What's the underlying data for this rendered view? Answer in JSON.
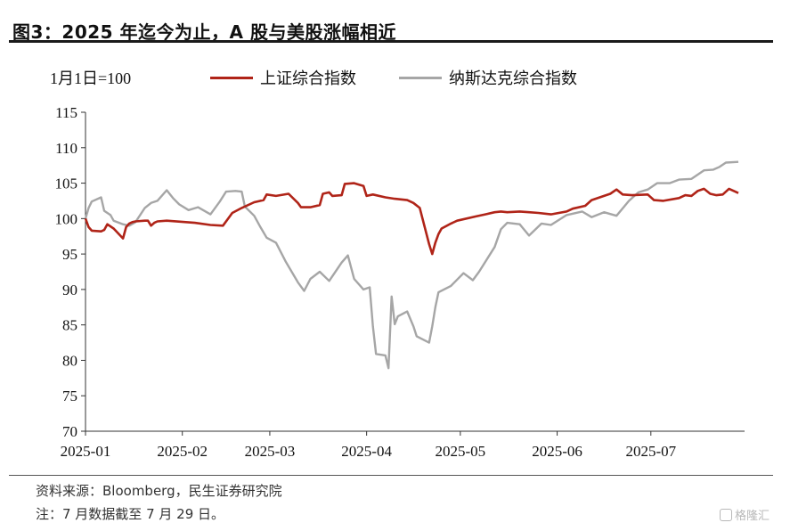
{
  "figure": {
    "title": "图3：2025 年迄今为止，A 股与美股涨幅相近",
    "index_note": "1月1日=100",
    "source": "资料来源：Bloomberg，民生证券研究院",
    "note": "注：7 月数据截至 7 月 29 日。",
    "watermark": "格隆汇"
  },
  "chart_data": {
    "type": "line",
    "title": "图3：2025 年迄今为止，A 股与美股涨幅相近",
    "xlabel": "",
    "ylabel": "",
    "x_tick_labels": [
      "2025-01",
      "2025-02",
      "2025-03",
      "2025-04",
      "2025-05",
      "2025-06",
      "2025-07"
    ],
    "x_tick_dates": [
      "2025-01-01",
      "2025-02-01",
      "2025-03-01",
      "2025-04-01",
      "2025-05-01",
      "2025-06-01",
      "2025-07-01"
    ],
    "xlim": [
      "2025-01-01",
      "2025-07-31"
    ],
    "ylim": [
      70,
      115
    ],
    "yticks": [
      70,
      75,
      80,
      85,
      90,
      95,
      100,
      105,
      110,
      115
    ],
    "grid": false,
    "legend_position": "top",
    "series": [
      {
        "name": "上证综合指数",
        "color": "#b02418",
        "points": [
          [
            "2025-01-01",
            100.0
          ],
          [
            "2025-01-02",
            98.8
          ],
          [
            "2025-01-03",
            98.3
          ],
          [
            "2025-01-06",
            98.2
          ],
          [
            "2025-01-07",
            98.4
          ],
          [
            "2025-01-08",
            99.2
          ],
          [
            "2025-01-10",
            98.6
          ],
          [
            "2025-01-13",
            97.2
          ],
          [
            "2025-01-14",
            98.8
          ],
          [
            "2025-01-15",
            99.3
          ],
          [
            "2025-01-16",
            99.5
          ],
          [
            "2025-01-17",
            99.6
          ],
          [
            "2025-01-20",
            99.7
          ],
          [
            "2025-01-21",
            99.7
          ],
          [
            "2025-01-22",
            99.0
          ],
          [
            "2025-01-23",
            99.4
          ],
          [
            "2025-01-24",
            99.6
          ],
          [
            "2025-01-27",
            99.7
          ],
          [
            "2025-02-05",
            99.4
          ],
          [
            "2025-02-10",
            99.1
          ],
          [
            "2025-02-14",
            99.0
          ],
          [
            "2025-02-17",
            100.8
          ],
          [
            "2025-02-20",
            101.5
          ],
          [
            "2025-02-24",
            102.3
          ],
          [
            "2025-02-27",
            102.6
          ],
          [
            "2025-02-28",
            103.4
          ],
          [
            "2025-03-03",
            103.2
          ],
          [
            "2025-03-07",
            103.5
          ],
          [
            "2025-03-10",
            102.2
          ],
          [
            "2025-03-11",
            101.6
          ],
          [
            "2025-03-14",
            101.6
          ],
          [
            "2025-03-17",
            101.9
          ],
          [
            "2025-03-18",
            103.5
          ],
          [
            "2025-03-20",
            103.7
          ],
          [
            "2025-03-21",
            103.2
          ],
          [
            "2025-03-24",
            103.3
          ],
          [
            "2025-03-25",
            104.9
          ],
          [
            "2025-03-28",
            105.0
          ],
          [
            "2025-03-31",
            104.6
          ],
          [
            "2025-04-01",
            103.2
          ],
          [
            "2025-04-03",
            103.4
          ],
          [
            "2025-04-07",
            103.0
          ],
          [
            "2025-04-10",
            102.8
          ],
          [
            "2025-04-14",
            102.6
          ],
          [
            "2025-04-16",
            102.2
          ],
          [
            "2025-04-18",
            101.5
          ],
          [
            "2025-04-21",
            96.4
          ],
          [
            "2025-04-22",
            95.0
          ],
          [
            "2025-04-23",
            96.6
          ],
          [
            "2025-04-24",
            97.8
          ],
          [
            "2025-04-25",
            98.6
          ],
          [
            "2025-04-28",
            99.3
          ],
          [
            "2025-04-30",
            99.7
          ],
          [
            "2025-05-06",
            100.3
          ],
          [
            "2025-05-09",
            100.6
          ],
          [
            "2025-05-12",
            100.9
          ],
          [
            "2025-05-14",
            101.0
          ],
          [
            "2025-05-16",
            100.9
          ],
          [
            "2025-05-20",
            101.0
          ],
          [
            "2025-05-23",
            100.9
          ],
          [
            "2025-05-26",
            100.8
          ],
          [
            "2025-05-30",
            100.6
          ],
          [
            "2025-06-04",
            101.0
          ],
          [
            "2025-06-06",
            101.4
          ],
          [
            "2025-06-10",
            101.8
          ],
          [
            "2025-06-12",
            102.6
          ],
          [
            "2025-06-16",
            103.2
          ],
          [
            "2025-06-18",
            103.5
          ],
          [
            "2025-06-20",
            104.1
          ],
          [
            "2025-06-22",
            103.4
          ],
          [
            "2025-06-25",
            103.3
          ],
          [
            "2025-06-30",
            103.4
          ],
          [
            "2025-07-02",
            102.6
          ],
          [
            "2025-07-05",
            102.5
          ],
          [
            "2025-07-10",
            102.9
          ],
          [
            "2025-07-12",
            103.3
          ],
          [
            "2025-07-14",
            103.2
          ],
          [
            "2025-07-16",
            103.9
          ],
          [
            "2025-07-18",
            104.2
          ],
          [
            "2025-07-20",
            103.5
          ],
          [
            "2025-07-22",
            103.3
          ],
          [
            "2025-07-24",
            103.4
          ],
          [
            "2025-07-26",
            104.2
          ],
          [
            "2025-07-28",
            103.8
          ],
          [
            "2025-07-29",
            103.6
          ]
        ]
      },
      {
        "name": "纳斯达克综合指数",
        "color": "#a6a6a6",
        "points": [
          [
            "2025-01-01",
            100.0
          ],
          [
            "2025-01-02",
            101.5
          ],
          [
            "2025-01-03",
            102.4
          ],
          [
            "2025-01-06",
            103.0
          ],
          [
            "2025-01-07",
            101.1
          ],
          [
            "2025-01-09",
            100.5
          ],
          [
            "2025-01-10",
            99.7
          ],
          [
            "2025-01-13",
            99.2
          ],
          [
            "2025-01-15",
            99.0
          ],
          [
            "2025-01-17",
            99.5
          ],
          [
            "2025-01-20",
            101.5
          ],
          [
            "2025-01-22",
            102.2
          ],
          [
            "2025-01-24",
            102.5
          ],
          [
            "2025-01-27",
            104.0
          ],
          [
            "2025-01-29",
            102.9
          ],
          [
            "2025-01-31",
            102.0
          ],
          [
            "2025-02-03",
            101.2
          ],
          [
            "2025-02-06",
            101.6
          ],
          [
            "2025-02-10",
            100.6
          ],
          [
            "2025-02-13",
            102.4
          ],
          [
            "2025-02-15",
            103.8
          ],
          [
            "2025-02-18",
            103.9
          ],
          [
            "2025-02-20",
            103.8
          ],
          [
            "2025-02-21",
            101.7
          ],
          [
            "2025-02-24",
            100.4
          ],
          [
            "2025-02-26",
            98.8
          ],
          [
            "2025-02-28",
            97.3
          ],
          [
            "2025-03-03",
            96.6
          ],
          [
            "2025-03-06",
            94.0
          ],
          [
            "2025-03-10",
            91.0
          ],
          [
            "2025-03-12",
            89.8
          ],
          [
            "2025-03-14",
            91.5
          ],
          [
            "2025-03-17",
            92.5
          ],
          [
            "2025-03-20",
            91.2
          ],
          [
            "2025-03-24",
            93.8
          ],
          [
            "2025-03-26",
            94.8
          ],
          [
            "2025-03-28",
            91.5
          ],
          [
            "2025-03-31",
            90.0
          ],
          [
            "2025-04-02",
            90.3
          ],
          [
            "2025-04-03",
            84.8
          ],
          [
            "2025-04-04",
            80.9
          ],
          [
            "2025-04-07",
            80.7
          ],
          [
            "2025-04-08",
            78.9
          ],
          [
            "2025-04-09",
            89.0
          ],
          [
            "2025-04-10",
            85.1
          ],
          [
            "2025-04-11",
            86.2
          ],
          [
            "2025-04-14",
            86.9
          ],
          [
            "2025-04-16",
            84.8
          ],
          [
            "2025-04-17",
            83.4
          ],
          [
            "2025-04-21",
            82.5
          ],
          [
            "2025-04-22",
            84.8
          ],
          [
            "2025-04-23",
            87.5
          ],
          [
            "2025-04-24",
            89.6
          ],
          [
            "2025-04-28",
            90.5
          ],
          [
            "2025-04-30",
            91.4
          ],
          [
            "2025-05-02",
            92.3
          ],
          [
            "2025-05-05",
            91.3
          ],
          [
            "2025-05-07",
            92.5
          ],
          [
            "2025-05-12",
            96.0
          ],
          [
            "2025-05-14",
            98.5
          ],
          [
            "2025-05-16",
            99.4
          ],
          [
            "2025-05-20",
            99.2
          ],
          [
            "2025-05-23",
            97.6
          ],
          [
            "2025-05-27",
            99.3
          ],
          [
            "2025-05-30",
            99.1
          ],
          [
            "2025-06-04",
            100.5
          ],
          [
            "2025-06-09",
            101.0
          ],
          [
            "2025-06-12",
            100.2
          ],
          [
            "2025-06-16",
            100.9
          ],
          [
            "2025-06-20",
            100.4
          ],
          [
            "2025-06-24",
            102.5
          ],
          [
            "2025-06-27",
            103.7
          ],
          [
            "2025-06-30",
            104.1
          ],
          [
            "2025-07-03",
            105.0
          ],
          [
            "2025-07-07",
            105.0
          ],
          [
            "2025-07-10",
            105.5
          ],
          [
            "2025-07-14",
            105.6
          ],
          [
            "2025-07-16",
            106.2
          ],
          [
            "2025-07-18",
            106.8
          ],
          [
            "2025-07-21",
            106.9
          ],
          [
            "2025-07-23",
            107.3
          ],
          [
            "2025-07-25",
            107.9
          ],
          [
            "2025-07-29",
            108.0
          ]
        ]
      }
    ]
  }
}
